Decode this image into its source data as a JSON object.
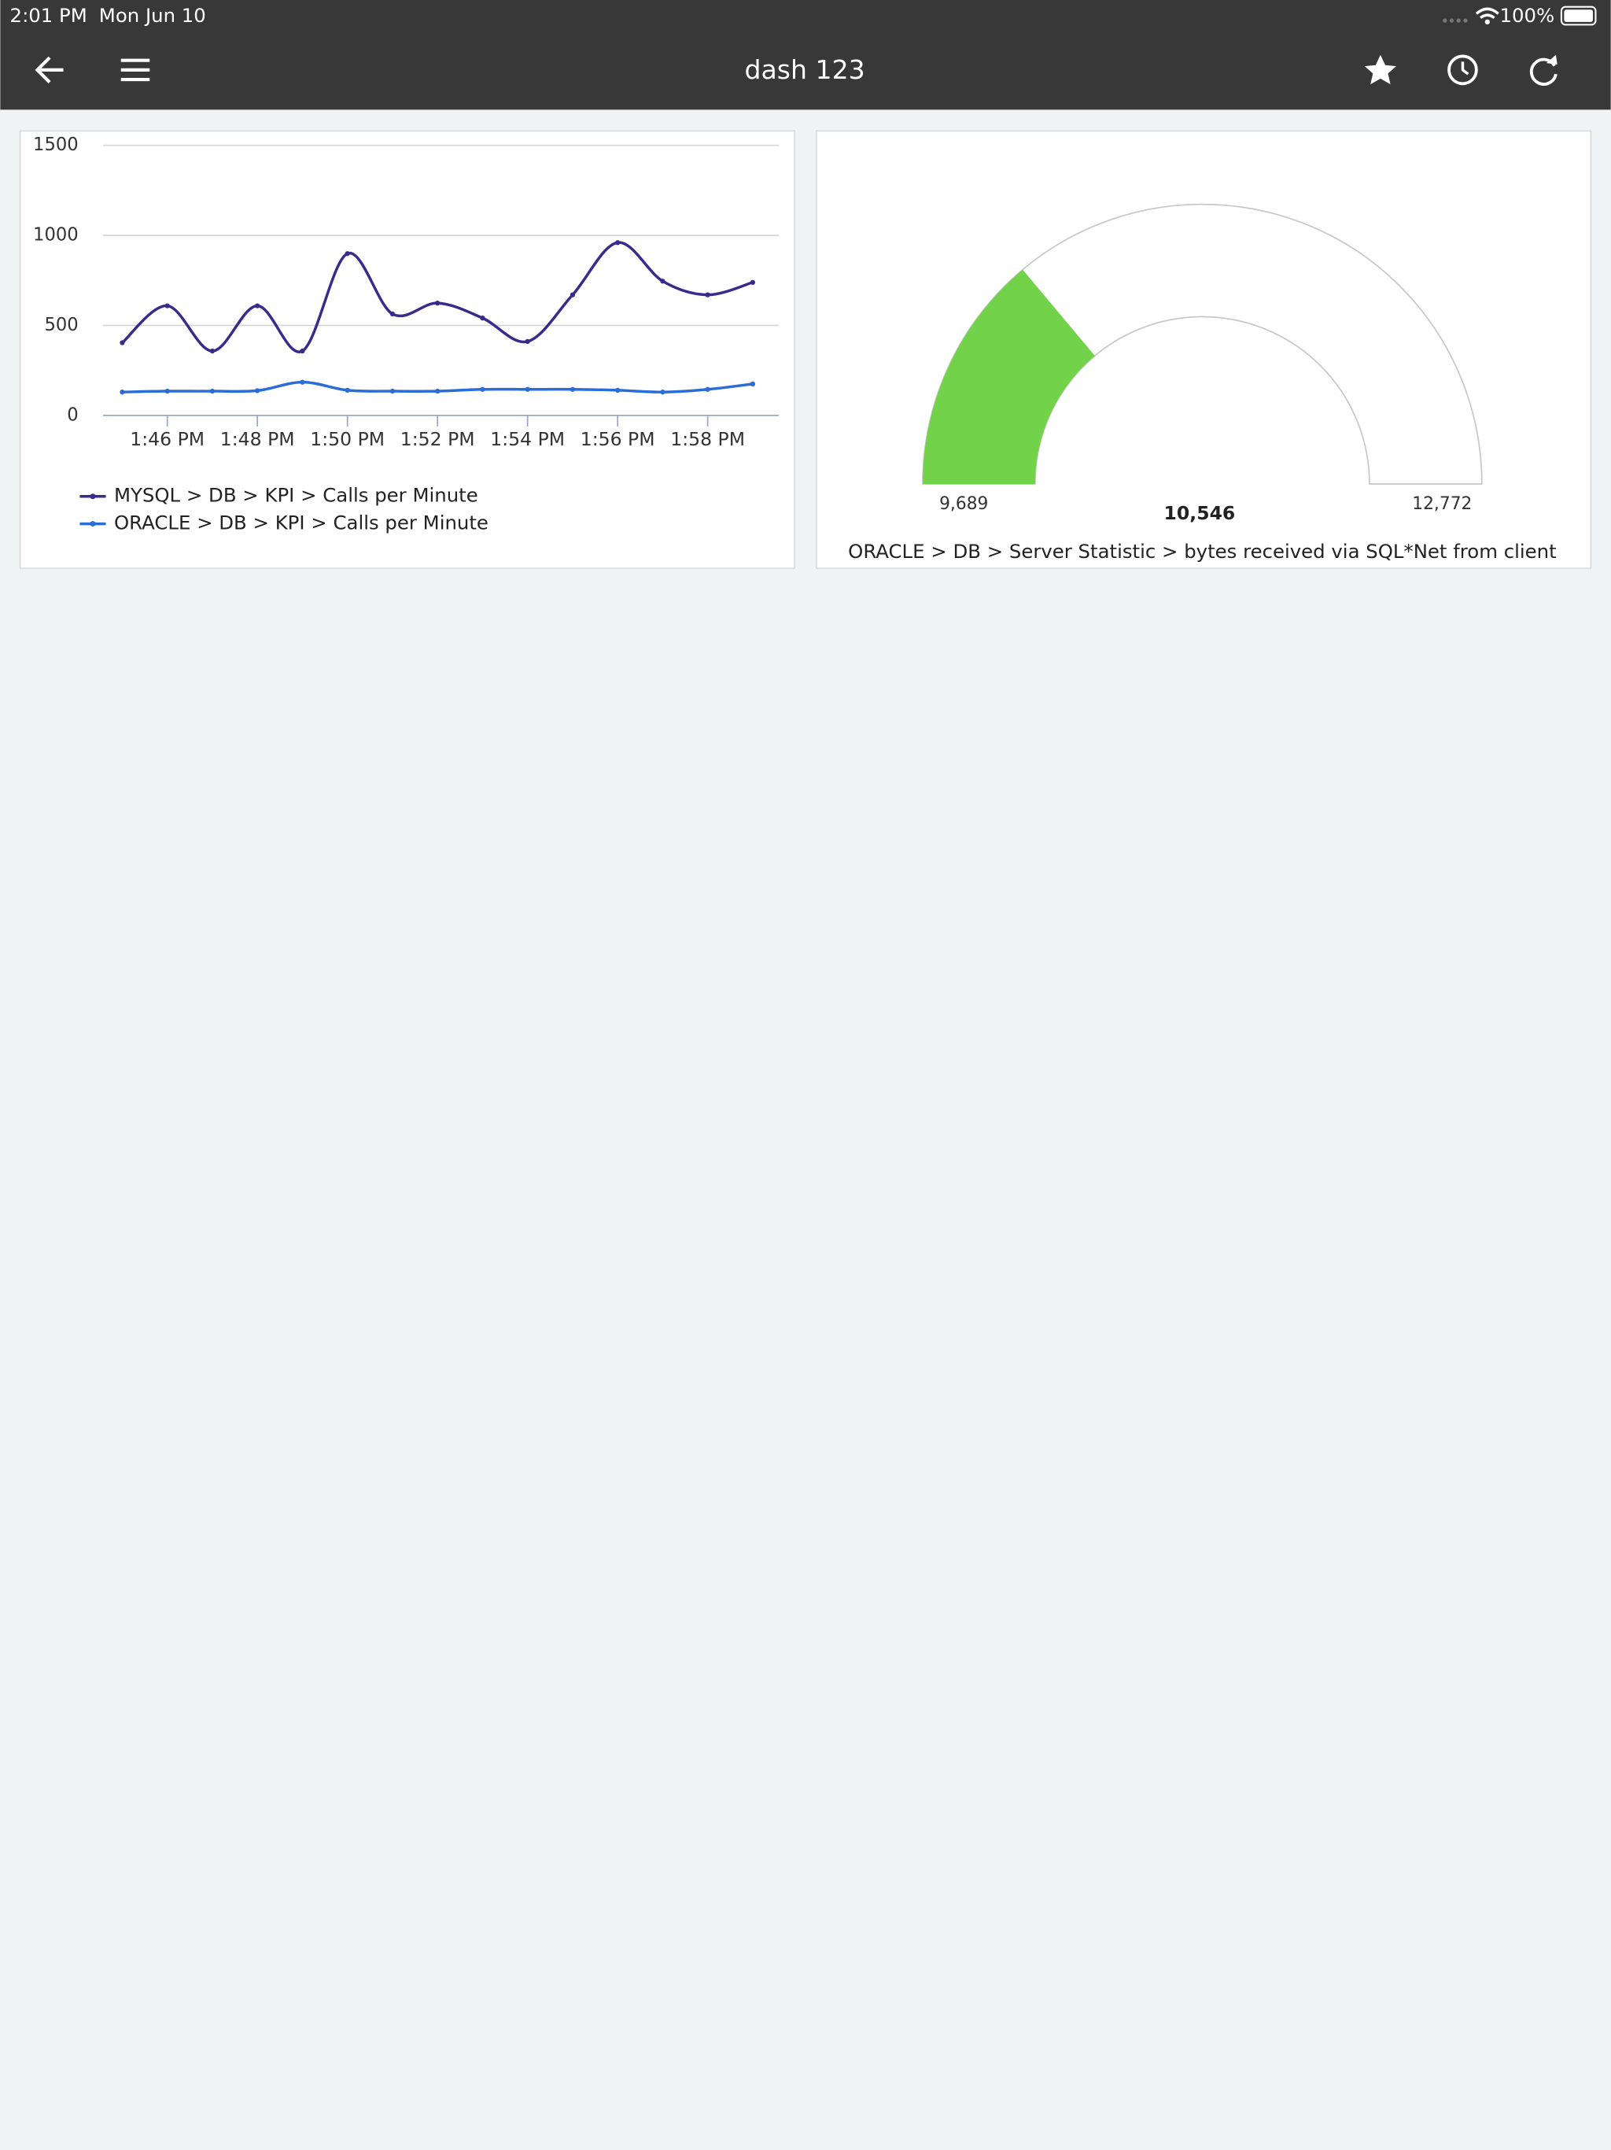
{
  "status_bar": {
    "time": "2:01 PM",
    "date": "Mon Jun 10",
    "battery": "100%"
  },
  "app_bar": {
    "title": "dash 123"
  },
  "chart_data": [
    {
      "type": "line",
      "categories": [
        null,
        "1:46 PM",
        null,
        "1:48 PM",
        null,
        "1:50 PM",
        null,
        "1:52 PM",
        null,
        "1:54 PM",
        null,
        "1:56 PM",
        null,
        "1:58 PM",
        null
      ],
      "series": [
        {
          "name": "MYSQL > DB > KPI > Calls per Minute",
          "color": "#3a2a8c",
          "values": [
            404,
            609,
            358,
            609,
            358,
            899,
            564,
            624,
            541,
            411,
            670,
            960,
            746,
            670,
            739
          ]
        },
        {
          "name": "ORACLE > DB > KPI > Calls per Minute",
          "color": "#2a6dd9",
          "values": [
            130,
            135,
            135,
            138,
            185,
            140,
            135,
            135,
            145,
            145,
            145,
            140,
            130,
            145,
            175
          ]
        }
      ],
      "ylim": [
        0,
        1500
      ],
      "yticks": [
        0,
        500,
        1000,
        1500
      ],
      "grid": true
    },
    {
      "type": "gauge",
      "title": "ORACLE > DB > Server Statistic > bytes received via SQL*Net from client",
      "min": 9689,
      "min_label": "9,689",
      "max": 12772,
      "max_label": "12,772",
      "value": 10546,
      "value_label": "10,546",
      "color": "#72d34a"
    }
  ]
}
